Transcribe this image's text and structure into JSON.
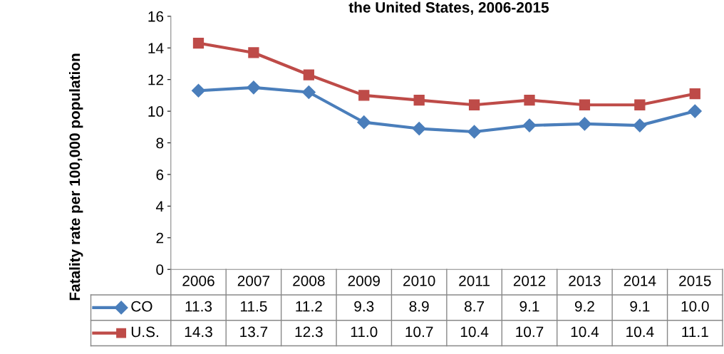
{
  "chart_data": {
    "type": "line",
    "title": "the United States, 2006-2015",
    "ylabel": "Fatality rate per 100,000 population",
    "categories": [
      "2006",
      "2007",
      "2008",
      "2009",
      "2010",
      "2011",
      "2012",
      "2013",
      "2014",
      "2015"
    ],
    "series": [
      {
        "name": "CO",
        "color": "#4a7ebb",
        "marker": "diamond",
        "values": [
          11.3,
          11.5,
          11.2,
          9.3,
          8.9,
          8.7,
          9.1,
          9.2,
          9.1,
          10.0
        ],
        "value_labels": [
          "11.3",
          "11.5",
          "11.2",
          "9.3",
          "8.9",
          "8.7",
          "9.1",
          "9.2",
          "9.1",
          "10.0"
        ]
      },
      {
        "name": "U.S.",
        "color": "#be4b48",
        "marker": "square",
        "values": [
          14.3,
          13.7,
          12.3,
          11.0,
          10.7,
          10.4,
          10.7,
          10.4,
          10.4,
          11.1
        ],
        "value_labels": [
          "14.3",
          "13.7",
          "12.3",
          "11.0",
          "10.7",
          "10.4",
          "10.7",
          "10.4",
          "10.4",
          "11.1"
        ]
      }
    ],
    "ylim": [
      0,
      16
    ],
    "yticks": [
      0,
      2,
      4,
      6,
      8,
      10,
      12,
      14,
      16
    ],
    "grid": false,
    "legend": "bottom"
  }
}
